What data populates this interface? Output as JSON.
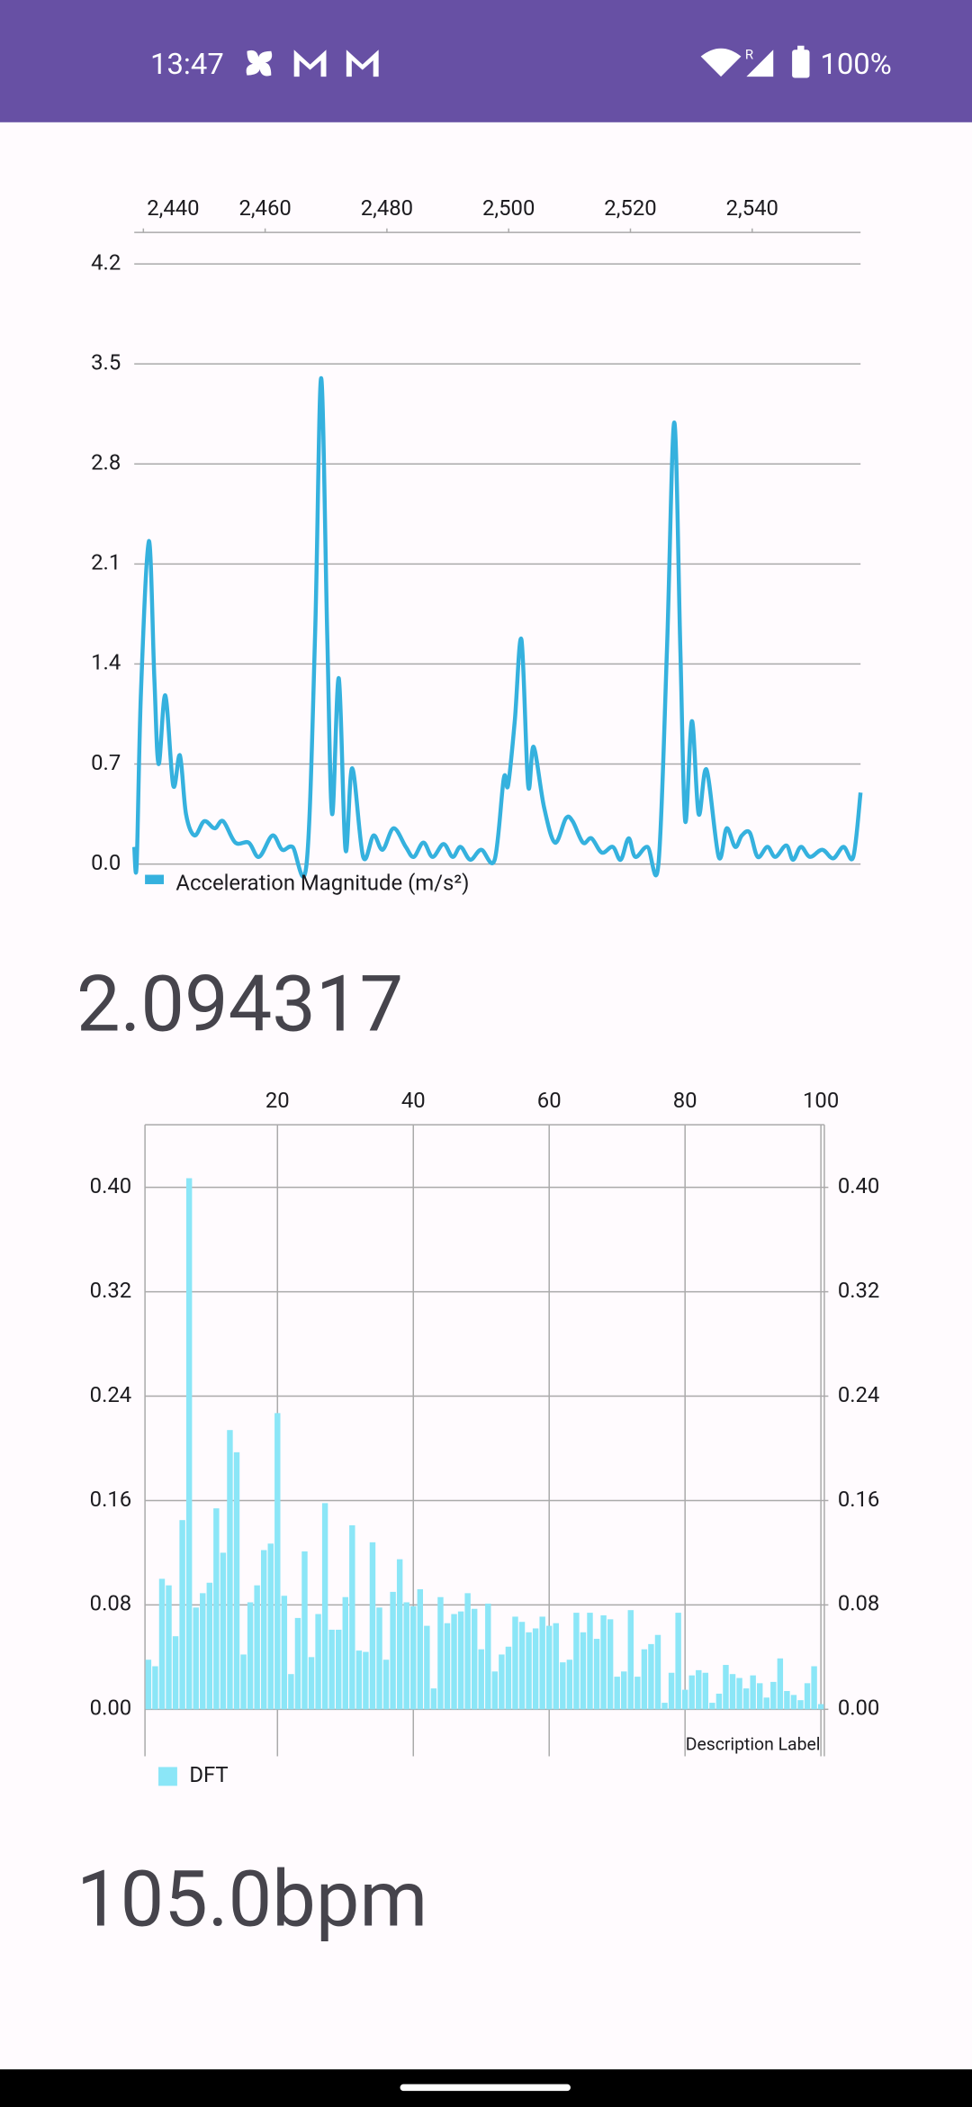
{
  "status_bar": {
    "time": "13:47",
    "battery": "100%"
  },
  "readouts": [
    "2.094317",
    "105.0bpm"
  ],
  "chart_data": [
    {
      "type": "line",
      "x": [
        2438.5,
        2438.9,
        2439.6,
        2440.9,
        2441.8,
        2442.5,
        2443.6,
        2444.9,
        2446.0,
        2447.0,
        2448.4,
        2450.0,
        2451.7,
        2453.1,
        2455.1,
        2457.3,
        2459.0,
        2461.2,
        2462.8,
        2464.5,
        2466.8,
        2468.2,
        2469.2,
        2470.2,
        2471.0,
        2472.1,
        2473.2,
        2474.3,
        2476.1,
        2477.8,
        2479.3,
        2481.1,
        2483.1,
        2484.4,
        2486.0,
        2487.5,
        2489.3,
        2490.8,
        2492.1,
        2493.7,
        2495.5,
        2497.7,
        2499.2,
        2499.9,
        2501.0,
        2502.1,
        2503.2,
        2504.1,
        2505.8,
        2507.6,
        2509.4,
        2510.5,
        2512.2,
        2513.6,
        2515.3,
        2517.1,
        2518.4,
        2519.7,
        2520.8,
        2522.8,
        2524.6,
        2526.0,
        2527.2,
        2528.2,
        2529.0,
        2530.1,
        2531.2,
        2532.5,
        2534.5,
        2535.8,
        2537.2,
        2538.3,
        2539.6,
        2540.9,
        2542.5,
        2543.8,
        2545.6,
        2546.7,
        2548.0,
        2549.5,
        2551.5,
        2553.3,
        2555.0,
        2556.6,
        2557.8
      ],
      "series": [
        {
          "name": "Acceleration Magnitude (m/s²)",
          "color": "#35b1de",
          "values": [
            0.12,
            0.0,
            1.2,
            2.26,
            1.3,
            0.7,
            1.18,
            0.55,
            0.76,
            0.35,
            0.2,
            0.3,
            0.25,
            0.3,
            0.15,
            0.15,
            0.05,
            0.2,
            0.1,
            0.12,
            0.0,
            1.6,
            3.4,
            1.6,
            0.35,
            1.3,
            0.1,
            0.67,
            0.05,
            0.2,
            0.1,
            0.25,
            0.12,
            0.05,
            0.15,
            0.05,
            0.14,
            0.05,
            0.12,
            0.03,
            0.1,
            0.03,
            0.6,
            0.55,
            1.0,
            1.57,
            0.55,
            0.82,
            0.4,
            0.15,
            0.32,
            0.3,
            0.15,
            0.18,
            0.08,
            0.12,
            0.03,
            0.18,
            0.05,
            0.12,
            0.0,
            1.5,
            3.09,
            1.5,
            0.3,
            1.0,
            0.35,
            0.66,
            0.05,
            0.25,
            0.12,
            0.2,
            0.22,
            0.05,
            0.12,
            0.05,
            0.13,
            0.03,
            0.12,
            0.05,
            0.1,
            0.04,
            0.12,
            0.05,
            0.5
          ]
        }
      ],
      "xlim": [
        2438.5,
        2557.8
      ],
      "xticks": [
        {
          "value": 2440,
          "label": "2,440"
        },
        {
          "value": 2460,
          "label": "2,460"
        },
        {
          "value": 2480,
          "label": "2,480"
        },
        {
          "value": 2500,
          "label": "2,500"
        },
        {
          "value": 2520,
          "label": "2,520"
        },
        {
          "value": 2540,
          "label": "2,540"
        }
      ],
      "ylim": [
        0,
        4.42
      ],
      "yticks": [
        {
          "value": 0,
          "label": "0.0"
        },
        0.7,
        1.4,
        2.1,
        2.8,
        3.5,
        4.2
      ],
      "grid": true,
      "legend": "bottom-left"
    },
    {
      "type": "bar",
      "x": [
        1,
        2,
        3,
        4,
        5,
        6,
        7,
        8,
        9,
        10,
        11,
        12,
        13,
        14,
        15,
        16,
        17,
        18,
        19,
        20,
        21,
        22,
        23,
        24,
        25,
        26,
        27,
        28,
        29,
        30,
        31,
        32,
        33,
        34,
        35,
        36,
        37,
        38,
        39,
        40,
        41,
        42,
        43,
        44,
        45,
        46,
        47,
        48,
        49,
        50,
        51,
        52,
        53,
        54,
        55,
        56,
        57,
        58,
        59,
        60,
        61,
        62,
        63,
        64,
        65,
        66,
        67,
        68,
        69,
        70,
        71,
        72,
        73,
        74,
        75,
        76,
        77,
        78,
        79,
        80,
        81,
        82,
        83,
        84,
        85,
        86,
        87,
        88,
        89,
        90,
        91,
        92,
        93,
        94,
        95,
        96,
        97,
        98,
        99,
        100
      ],
      "series": [
        {
          "name": "DFT",
          "color": "#8be6f7",
          "values": [
            0.038,
            0.033,
            0.1,
            0.095,
            0.056,
            0.145,
            0.407,
            0.078,
            0.089,
            0.097,
            0.154,
            0.12,
            0.214,
            0.197,
            0.042,
            0.082,
            0.095,
            0.122,
            0.127,
            0.227,
            0.087,
            0.027,
            0.07,
            0.121,
            0.04,
            0.073,
            0.158,
            0.061,
            0.061,
            0.086,
            0.141,
            0.045,
            0.044,
            0.128,
            0.078,
            0.038,
            0.09,
            0.115,
            0.082,
            0.079,
            0.092,
            0.064,
            0.016,
            0.086,
            0.066,
            0.073,
            0.075,
            0.089,
            0.077,
            0.046,
            0.081,
            0.029,
            0.042,
            0.048,
            0.071,
            0.067,
            0.059,
            0.062,
            0.071,
            0.064,
            0.066,
            0.036,
            0.038,
            0.074,
            0.059,
            0.074,
            0.054,
            0.072,
            0.069,
            0.025,
            0.029,
            0.076,
            0.025,
            0.046,
            0.05,
            0.057,
            0.005,
            0.028,
            0.074,
            0.015,
            0.026,
            0.03,
            0.028,
            0.005,
            0.012,
            0.034,
            0.027,
            0.024,
            0.016,
            0.026,
            0.02,
            0.009,
            0.021,
            0.039,
            0.014,
            0.011,
            0.007,
            0.02,
            0.033,
            0.004
          ]
        }
      ],
      "xlim": [
        0.5,
        100.5
      ],
      "xticks": [
        20,
        40,
        60,
        80,
        100
      ],
      "ylim": [
        -0.036,
        0.448
      ],
      "yticks": [
        {
          "value": 0,
          "label": "0.00"
        },
        0.08,
        0.16,
        0.24,
        0.32,
        {
          "value": 0.4,
          "label": "0.40"
        }
      ],
      "y2lim": [
        -0.036,
        0.448
      ],
      "y2ticks": [
        {
          "value": 0,
          "label": "0.00"
        },
        0.08,
        0.16,
        0.24,
        0.32,
        {
          "value": 0.4,
          "label": "0.40"
        }
      ],
      "annotation": "Description Label",
      "grid": true,
      "legend": "bottom-left"
    }
  ]
}
